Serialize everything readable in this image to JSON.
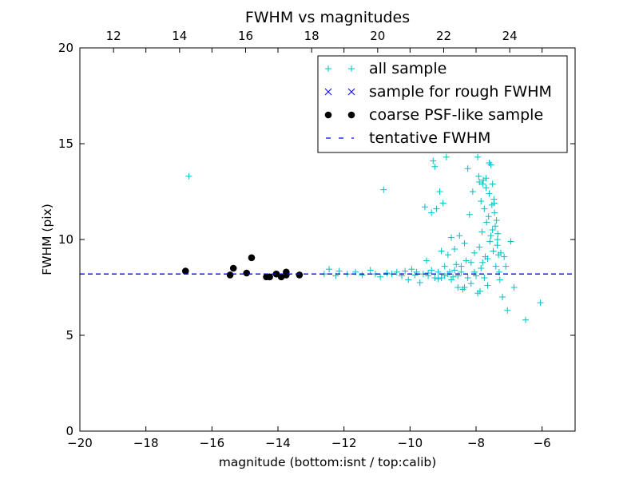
{
  "chart_data": {
    "type": "scatter",
    "title": "FWHM vs magnitudes",
    "xlabel": "magnitude (bottom:isnt / top:calib)",
    "ylabel": "FWHM (pix)",
    "xlim": [
      -20,
      -5
    ],
    "ylim": [
      0,
      20
    ],
    "x_ticks": [
      -20,
      -18,
      -16,
      -14,
      -12,
      -10,
      -8,
      -6
    ],
    "y_ticks": [
      0,
      5,
      10,
      15,
      20
    ],
    "x_tick_labels": [
      "−20",
      "−18",
      "−16",
      "−14",
      "−12",
      "−10",
      "−8",
      "−6"
    ],
    "y_tick_labels": [
      "0",
      "5",
      "10",
      "15",
      "20"
    ],
    "top_axis": {
      "xlim": [
        10.98,
        25.98
      ],
      "ticks": [
        12,
        14,
        16,
        18,
        20,
        22,
        24
      ],
      "tick_labels": [
        "12",
        "14",
        "16",
        "18",
        "20",
        "22",
        "24"
      ]
    },
    "grid": false,
    "legend_position": "top-right",
    "series": [
      {
        "name": "all sample",
        "marker": "+",
        "color": "#00bfbf",
        "points": [
          [
            -16.7,
            13.3
          ],
          [
            -12.6,
            8.2
          ],
          [
            -12.45,
            8.45
          ],
          [
            -12.25,
            8.1
          ],
          [
            -12.15,
            8.35
          ],
          [
            -11.9,
            8.2
          ],
          [
            -11.65,
            8.3
          ],
          [
            -11.45,
            8.15
          ],
          [
            -11.2,
            8.4
          ],
          [
            -11.05,
            8.2
          ],
          [
            -10.9,
            8.05
          ],
          [
            -10.8,
            12.6
          ],
          [
            -10.7,
            8.25
          ],
          [
            -10.55,
            8.2
          ],
          [
            -10.4,
            8.3
          ],
          [
            -10.25,
            8.1
          ],
          [
            -10.15,
            8.35
          ],
          [
            -10.05,
            7.9
          ],
          [
            -9.95,
            8.45
          ],
          [
            -9.85,
            8.15
          ],
          [
            -9.8,
            8.3
          ],
          [
            -9.7,
            7.75
          ],
          [
            -9.6,
            8.2
          ],
          [
            -9.55,
            11.7
          ],
          [
            -9.5,
            8.9
          ],
          [
            -9.45,
            8.1
          ],
          [
            -9.35,
            11.4
          ],
          [
            -9.3,
            14.1
          ],
          [
            -9.25,
            13.8
          ],
          [
            -9.2,
            11.6
          ],
          [
            -9.15,
            7.95
          ],
          [
            -9.1,
            12.5
          ],
          [
            -9.05,
            9.4
          ],
          [
            -9.0,
            11.9
          ],
          [
            -8.95,
            8.6
          ],
          [
            -8.9,
            14.3
          ],
          [
            -8.85,
            9.2
          ],
          [
            -8.8,
            8.3
          ],
          [
            -8.75,
            10.1
          ],
          [
            -8.7,
            8.05
          ],
          [
            -8.65,
            9.5
          ],
          [
            -8.6,
            8.7
          ],
          [
            -8.55,
            7.5
          ],
          [
            -8.5,
            10.2
          ],
          [
            -8.45,
            8.3
          ],
          [
            -8.4,
            7.4
          ],
          [
            -8.35,
            9.8
          ],
          [
            -8.3,
            8.9
          ],
          [
            -8.25,
            13.7
          ],
          [
            -8.2,
            11.3
          ],
          [
            -8.15,
            7.7
          ],
          [
            -8.1,
            12.5
          ],
          [
            -8.05,
            9.3
          ],
          [
            -8.0,
            8.1
          ],
          [
            -7.95,
            14.3
          ],
          [
            -7.92,
            13.3
          ],
          [
            -7.9,
            9.6
          ],
          [
            -7.88,
            7.3
          ],
          [
            -7.85,
            12.0
          ],
          [
            -7.82,
            10.4
          ],
          [
            -7.8,
            8.8
          ],
          [
            -7.78,
            13.1
          ],
          [
            -7.75,
            11.6
          ],
          [
            -7.72,
            9.1
          ],
          [
            -7.7,
            12.7
          ],
          [
            -7.68,
            10.9
          ],
          [
            -7.65,
            7.6
          ],
          [
            -7.62,
            11.2
          ],
          [
            -7.6,
            12.4
          ],
          [
            -7.58,
            9.9
          ],
          [
            -7.55,
            13.9
          ],
          [
            -7.52,
            11.8
          ],
          [
            -7.5,
            10.5
          ],
          [
            -7.48,
            9.4
          ],
          [
            -7.46,
            12.1
          ],
          [
            -7.44,
            11.4
          ],
          [
            -7.42,
            10.7
          ],
          [
            -7.4,
            8.6
          ],
          [
            -7.38,
            11.0
          ],
          [
            -7.36,
            9.7
          ],
          [
            -7.34,
            10.3
          ],
          [
            -7.32,
            9.2
          ],
          [
            -7.3,
            8.3
          ],
          [
            -7.28,
            7.9
          ],
          [
            -7.25,
            9.3
          ],
          [
            -7.2,
            7.0
          ],
          [
            -7.15,
            9.1
          ],
          [
            -7.1,
            8.6
          ],
          [
            -7.05,
            6.3
          ],
          [
            -6.95,
            9.9
          ],
          [
            -6.85,
            7.5
          ],
          [
            -6.5,
            5.8
          ],
          [
            -6.05,
            6.7
          ],
          [
            -7.6,
            14.0
          ],
          [
            -7.7,
            13.2
          ],
          [
            -7.8,
            12.9
          ],
          [
            -7.9,
            13.0
          ],
          [
            -7.5,
            12.9
          ],
          [
            -7.45,
            11.9
          ],
          [
            -7.35,
            10.0
          ],
          [
            -7.55,
            10.2
          ],
          [
            -7.65,
            9.0
          ],
          [
            -7.75,
            8.0
          ],
          [
            -7.85,
            8.5
          ],
          [
            -7.95,
            7.2
          ],
          [
            -8.05,
            8.3
          ],
          [
            -8.15,
            8.8
          ],
          [
            -8.25,
            8.0
          ],
          [
            -8.35,
            7.5
          ],
          [
            -8.45,
            8.6
          ],
          [
            -8.55,
            8.1
          ],
          [
            -8.65,
            8.4
          ],
          [
            -8.75,
            7.9
          ],
          [
            -8.85,
            8.2
          ],
          [
            -8.95,
            8.1
          ],
          [
            -9.05,
            8.0
          ],
          [
            -9.15,
            8.3
          ],
          [
            -9.25,
            8.0
          ],
          [
            -9.35,
            8.4
          ],
          [
            -9.45,
            8.25
          ]
        ]
      },
      {
        "name": "sample for rough FWHM",
        "marker": "x",
        "color": "#0000ff",
        "points": []
      },
      {
        "name": "coarse PSF-like sample",
        "marker": "o",
        "color": "#000000",
        "points": [
          [
            -16.8,
            8.35
          ],
          [
            -15.45,
            8.15
          ],
          [
            -15.35,
            8.5
          ],
          [
            -14.95,
            8.25
          ],
          [
            -14.8,
            9.05
          ],
          [
            -14.35,
            8.05
          ],
          [
            -14.25,
            8.05
          ],
          [
            -14.05,
            8.2
          ],
          [
            -13.9,
            8.05
          ],
          [
            -13.75,
            8.15
          ],
          [
            -13.75,
            8.3
          ],
          [
            -13.35,
            8.15
          ]
        ]
      },
      {
        "name": "tentative FWHM",
        "marker": "dashed-line",
        "color": "#0000ff",
        "y": 8.2
      }
    ]
  }
}
